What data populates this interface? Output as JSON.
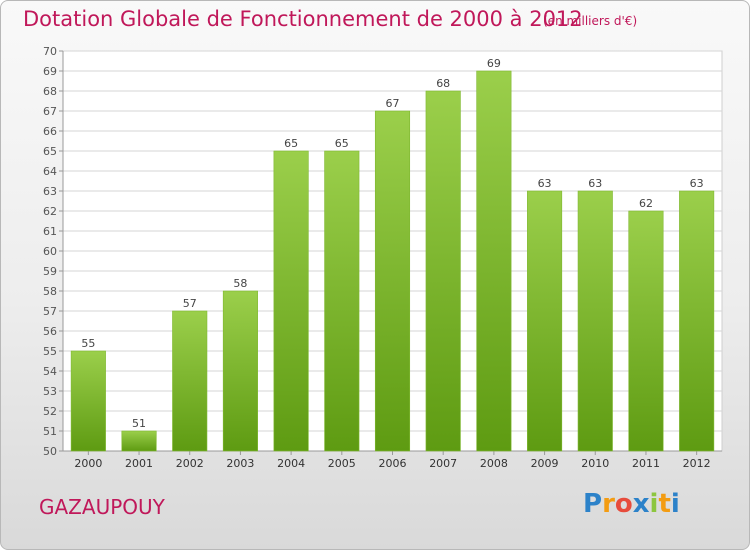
{
  "title": "Dotation Globale de Fonctionnement de 2000 à 2012",
  "subtitle": "(en milliers d'€)",
  "commune": "GAZAUPOUY",
  "logo": {
    "text": "Proxiti",
    "letters": [
      "P",
      "r",
      "o",
      "x",
      "i",
      "t",
      "i"
    ],
    "colors": [
      "#2c82c9",
      "#f39c12",
      "#e74c3c",
      "#2c82c9",
      "#8dc63f",
      "#f39c12",
      "#2c82c9"
    ]
  },
  "chart_data": {
    "type": "bar",
    "categories": [
      "2000",
      "2001",
      "2002",
      "2003",
      "2004",
      "2005",
      "2006",
      "2007",
      "2008",
      "2009",
      "2010",
      "2011",
      "2012"
    ],
    "values": [
      55,
      51,
      57,
      58,
      65,
      65,
      67,
      68,
      69,
      63,
      63,
      62,
      63
    ],
    "data_labels": [
      "55",
      "51",
      "57",
      "58",
      "65",
      "65",
      "67",
      "68",
      "69",
      "63",
      "63",
      "62",
      "63"
    ],
    "ylim": [
      50,
      70
    ],
    "yticks": [
      "50",
      "51",
      "52",
      "53",
      "54",
      "55",
      "56",
      "57",
      "58",
      "59",
      "60",
      "61",
      "62",
      "63",
      "64",
      "65",
      "66",
      "67",
      "68",
      "69",
      "70"
    ],
    "grid": true,
    "bar_color_top": "#9bcf4b",
    "bar_color_bottom": "#5e9b12",
    "label_color": "#444444"
  }
}
